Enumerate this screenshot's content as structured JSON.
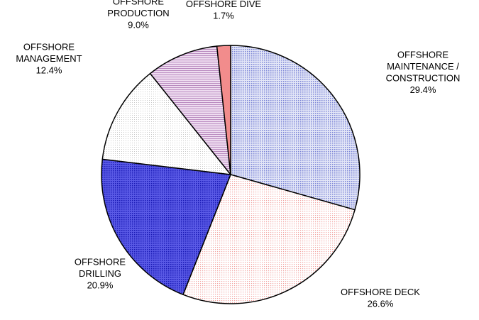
{
  "chart_data": {
    "type": "pie",
    "start_angle_deg": 0,
    "direction": "clockwise",
    "slices": [
      {
        "label_lines": [
          "OFFSHORE",
          "MAINTENANCE /",
          "CONSTRUCTION"
        ],
        "percent_label": "29.4%",
        "value": 29.4,
        "color": "#b7bde6",
        "pattern": "dots-blue"
      },
      {
        "label_lines": [
          "OFFSHORE DECK"
        ],
        "percent_label": "26.6%",
        "value": 26.6,
        "color": "#fbe6e4",
        "pattern": "dots-pink"
      },
      {
        "label_lines": [
          "OFFSHORE",
          "DRILLING"
        ],
        "percent_label": "20.9%",
        "value": 20.9,
        "color": "#3a3ad4",
        "pattern": "dots-darkblue"
      },
      {
        "label_lines": [
          "OFFSHORE",
          "MANAGEMENT"
        ],
        "percent_label": "12.4%",
        "value": 12.4,
        "color": "#f4f4f4",
        "pattern": "dots-grey"
      },
      {
        "label_lines": [
          "OFFSHORE",
          "PRODUCTION"
        ],
        "percent_label": "9.0%",
        "value": 9.0,
        "color": "#e0c6e2",
        "pattern": "lines-purple"
      },
      {
        "label_lines": [
          "OFFSHORE DIVE"
        ],
        "percent_label": "1.7%",
        "value": 1.7,
        "color": "#f28c8c",
        "pattern": "solid"
      }
    ]
  }
}
